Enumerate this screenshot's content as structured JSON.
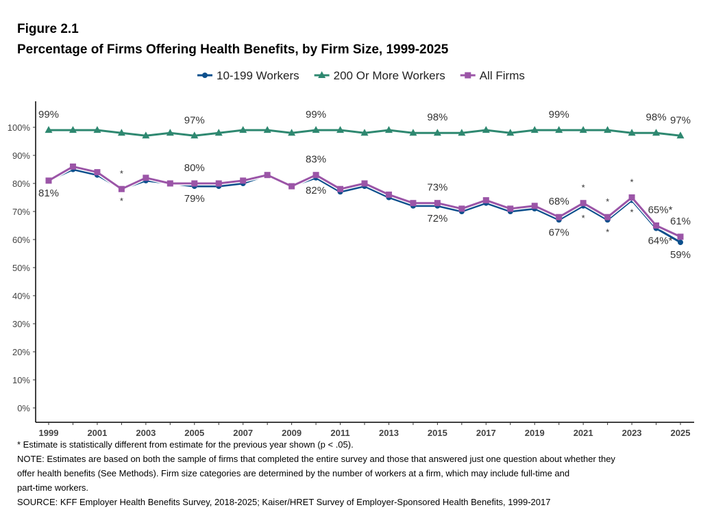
{
  "figure_label": "Figure 2.1",
  "chart_data": {
    "type": "line",
    "title": "Percentage of Firms Offering Health Benefits, by Firm Size, 1999-2025",
    "xlabel": "",
    "ylabel": "",
    "ylim": [
      0,
      100
    ],
    "yticks": [
      "0%",
      "10%",
      "20%",
      "30%",
      "40%",
      "50%",
      "60%",
      "70%",
      "80%",
      "90%",
      "100%"
    ],
    "xticks": [
      "1999",
      "2001",
      "2003",
      "2005",
      "2007",
      "2009",
      "2011",
      "2013",
      "2015",
      "2017",
      "2019",
      "2021",
      "2023",
      "2025"
    ],
    "grid": false,
    "legend_position": "top",
    "x": [
      1999,
      2000,
      2001,
      2002,
      2003,
      2004,
      2005,
      2006,
      2007,
      2008,
      2009,
      2010,
      2011,
      2012,
      2013,
      2014,
      2015,
      2016,
      2017,
      2018,
      2019,
      2020,
      2021,
      2022,
      2023,
      2024,
      2025
    ],
    "series": [
      {
        "name": "10-199 Workers",
        "color": "#0b4f8c",
        "marker": "circle",
        "values": [
          81,
          85,
          83,
          78,
          81,
          80,
          79,
          79,
          80,
          83,
          79,
          82,
          77,
          79,
          75,
          72,
          72,
          70,
          73,
          70,
          71,
          67,
          72,
          67,
          74,
          64,
          59
        ]
      },
      {
        "name": "200 Or More Workers",
        "color": "#2e8870",
        "marker": "triangle",
        "values": [
          99,
          99,
          99,
          98,
          97,
          98,
          97,
          98,
          99,
          99,
          98,
          99,
          99,
          98,
          99,
          98,
          98,
          98,
          99,
          98,
          99,
          99,
          99,
          99,
          98,
          98,
          97
        ]
      },
      {
        "name": "All Firms",
        "color": "#9b55a7",
        "marker": "square",
        "values": [
          81,
          86,
          84,
          78,
          82,
          80,
          80,
          80,
          81,
          83,
          79,
          83,
          78,
          80,
          76,
          73,
          73,
          71,
          74,
          71,
          72,
          68,
          73,
          68,
          75,
          65,
          61
        ]
      }
    ],
    "annotations": [
      {
        "series": 1,
        "year": 1999,
        "text": "99%",
        "position": "above"
      },
      {
        "series": 1,
        "year": 2005,
        "text": "97%",
        "position": "above"
      },
      {
        "series": 1,
        "year": 2010,
        "text": "99%",
        "position": "above"
      },
      {
        "series": 1,
        "year": 2015,
        "text": "98%",
        "position": "above"
      },
      {
        "series": 1,
        "year": 2020,
        "text": "99%",
        "position": "above"
      },
      {
        "series": 1,
        "year": 2024,
        "text": "98%",
        "position": "above"
      },
      {
        "series": 1,
        "year": 2025,
        "text": "97%",
        "position": "above"
      },
      {
        "series": 2,
        "year": 2005,
        "text": "80%",
        "position": "above"
      },
      {
        "series": 2,
        "year": 2010,
        "text": "83%",
        "position": "above"
      },
      {
        "series": 2,
        "year": 2015,
        "text": "73%",
        "position": "above"
      },
      {
        "series": 2,
        "year": 2020,
        "text": "68%",
        "position": "above"
      },
      {
        "series": 2,
        "year": 2024,
        "text": "65%*",
        "position": "above"
      },
      {
        "series": 2,
        "year": 2025,
        "text": "61%",
        "position": "above"
      },
      {
        "series": 2,
        "year": 2002,
        "text": "*",
        "position": "above"
      },
      {
        "series": 2,
        "year": 2021,
        "text": "*",
        "position": "above"
      },
      {
        "series": 2,
        "year": 2022,
        "text": "*",
        "position": "above"
      },
      {
        "series": 2,
        "year": 2023,
        "text": "*",
        "position": "above"
      },
      {
        "series": 0,
        "year": 1999,
        "text": "81%",
        "position": "below"
      },
      {
        "series": 0,
        "year": 2005,
        "text": "79%",
        "position": "below"
      },
      {
        "series": 0,
        "year": 2010,
        "text": "82%",
        "position": "below"
      },
      {
        "series": 0,
        "year": 2015,
        "text": "72%",
        "position": "below"
      },
      {
        "series": 0,
        "year": 2020,
        "text": "67%",
        "position": "below"
      },
      {
        "series": 0,
        "year": 2024,
        "text": "64%*",
        "position": "below"
      },
      {
        "series": 0,
        "year": 2025,
        "text": "59%",
        "position": "below"
      },
      {
        "series": 0,
        "year": 2002,
        "text": "*",
        "position": "below"
      },
      {
        "series": 0,
        "year": 2021,
        "text": "*",
        "position": "below"
      },
      {
        "series": 0,
        "year": 2022,
        "text": "*",
        "position": "below"
      },
      {
        "series": 0,
        "year": 2023,
        "text": "*",
        "position": "below"
      }
    ]
  },
  "notes": [
    "* Estimate is statistically different from estimate for the previous year shown (p < .05).",
    "NOTE: Estimates are based on both the sample of firms that completed the entire survey and those that answered just one question about whether they",
    "offer health benefits (See Methods). Firm size categories are determined by the number of workers at a firm, which may include full-time and",
    "part-time workers.",
    "SOURCE: KFF Employer Health Benefits Survey, 2018-2025; Kaiser/HRET Survey of Employer-Sponsored Health Benefits, 1999-2017"
  ]
}
